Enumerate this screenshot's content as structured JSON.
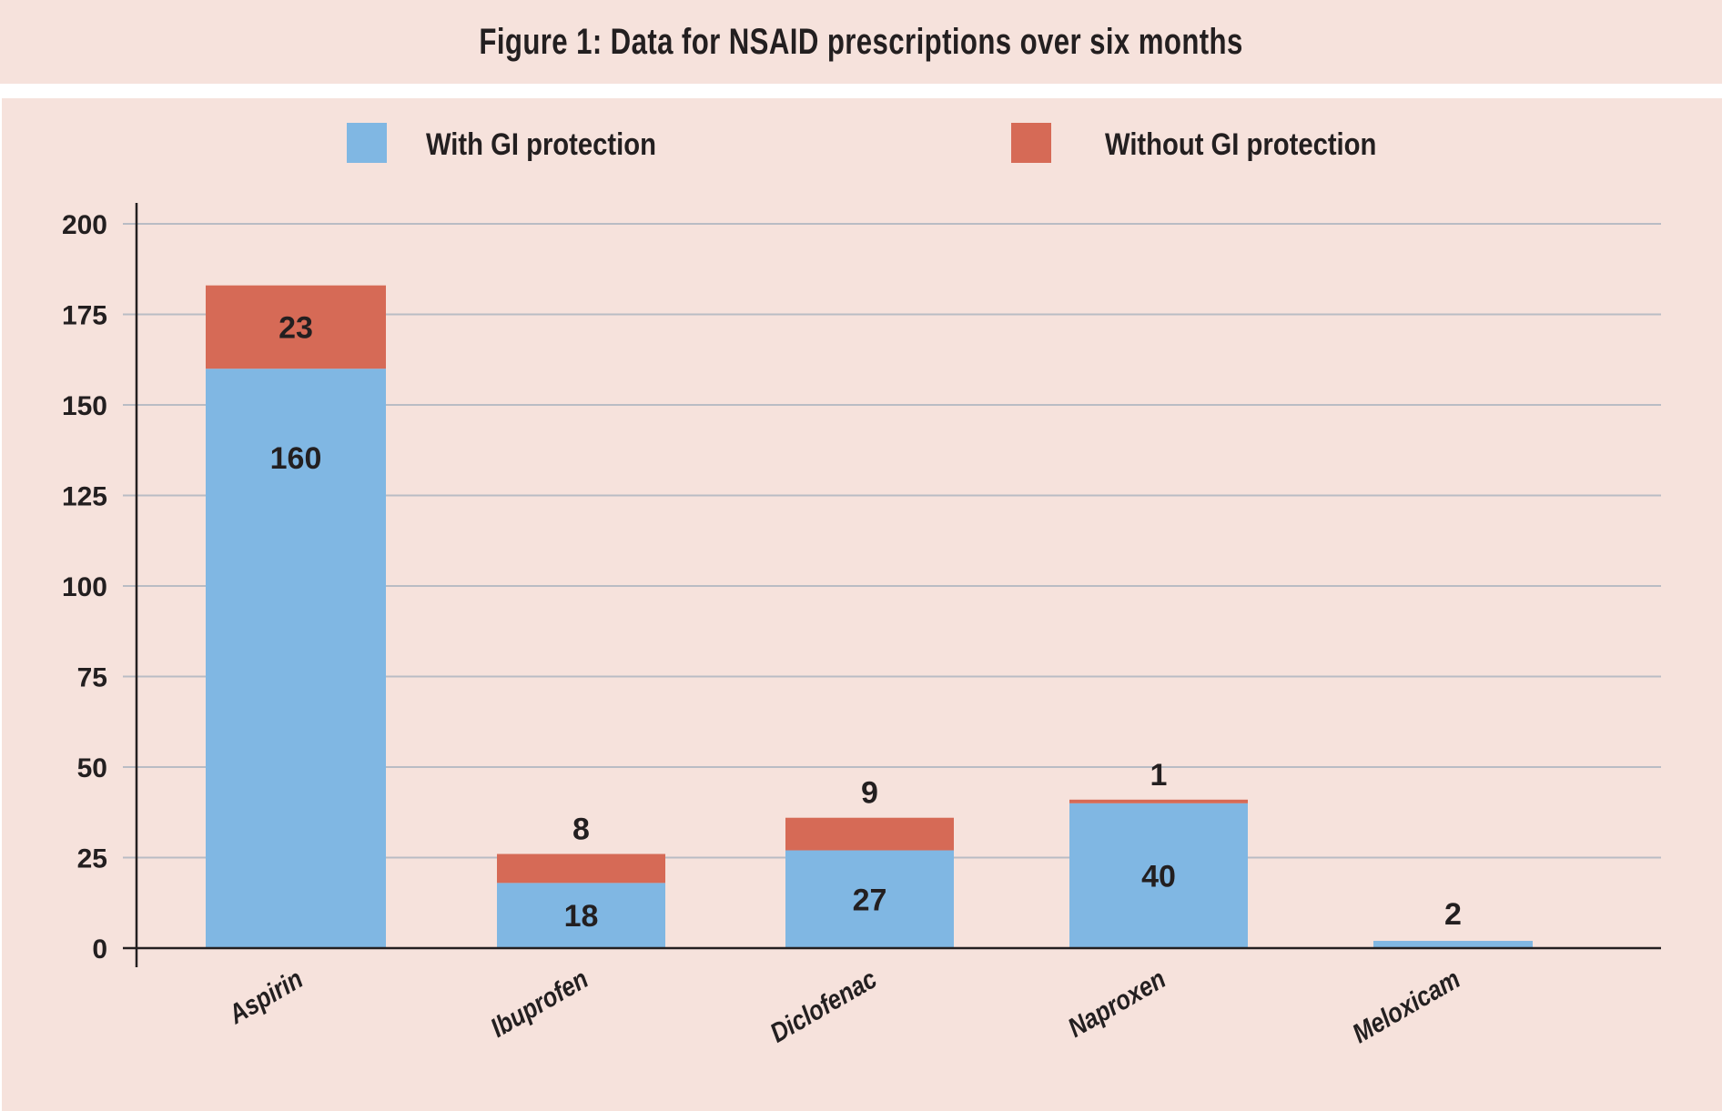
{
  "chart_data": {
    "type": "bar",
    "stacked": true,
    "title": "Figure 1: Data for NSAID prescriptions over six months",
    "xlabel": "",
    "ylabel": "",
    "categories": [
      "Aspirin",
      "Ibuprofen",
      "Diclofenac",
      "Naproxen",
      "Meloxicam"
    ],
    "series": [
      {
        "name": "With GI protection",
        "color": "#80b7e3",
        "values": [
          160,
          18,
          27,
          40,
          2
        ]
      },
      {
        "name": "Without GI protection",
        "color": "#d66a56",
        "values": [
          23,
          8,
          9,
          1,
          0
        ]
      }
    ],
    "data_labels": [
      {
        "category": "Aspirin",
        "with": "160",
        "without": "23"
      },
      {
        "category": "Ibuprofen",
        "with": "18",
        "without": "8"
      },
      {
        "category": "Diclofenac",
        "with": "27",
        "without": "9"
      },
      {
        "category": "Naproxen",
        "with": "40",
        "without": "1"
      },
      {
        "category": "Meloxicam",
        "with": "2",
        "without": ""
      }
    ],
    "ylim": [
      0,
      200
    ],
    "yticks": [
      0,
      25,
      50,
      75,
      100,
      125,
      150,
      175,
      200
    ],
    "grid": true,
    "legend_position": "top",
    "colors": {
      "background": "#f6e2dc",
      "grid": "#b9bcc4",
      "axis": "#231f20"
    }
  }
}
